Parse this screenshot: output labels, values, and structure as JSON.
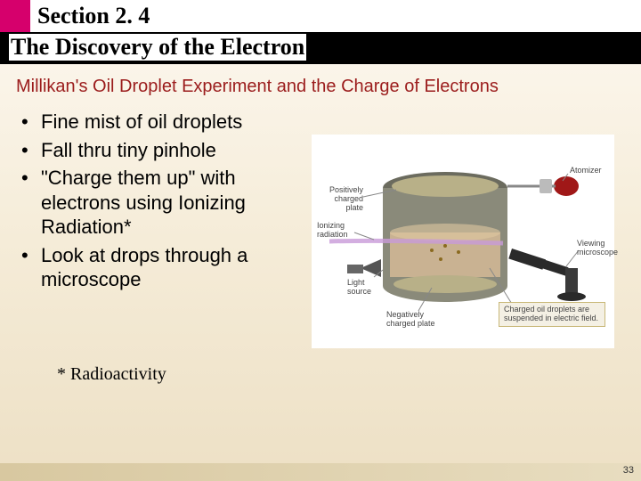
{
  "header": {
    "section_label": "Section 2. 4",
    "subtitle_bar": "The Discovery of the Electron"
  },
  "subtitle": "Millikan's Oil Droplet Experiment and the Charge of Electrons",
  "bullets": [
    "Fine mist of oil droplets",
    "Fall thru tiny pinhole",
    "\"Charge them up\" with electrons using Ionizing Radiation*",
    "Look at drops through a microscope"
  ],
  "footnote": "* Radioactivity",
  "page_number": "33",
  "diagram": {
    "labels": {
      "positively_charged_plate": "Positively\ncharged plate",
      "ionizing_radiation": "Ionizing\nradiation",
      "light_source": "Light\nsource",
      "negatively_charged_plate": "Negatively\ncharged plate",
      "atomizer": "Atomizer",
      "viewing_microscope": "Viewing\nmicroscope",
      "caption": "Charged oil droplets are\nsuspended in electric field."
    },
    "colors": {
      "chamber_body": "#8a8a7a",
      "chamber_rim": "#6b6b5e",
      "oil": "#d4b896",
      "ray": "#c89ad8",
      "atomizer_bulb": "#a01818",
      "microscope": "#2a2a2a",
      "plate": "#b8b088",
      "caption_bg": "#f4f0e4",
      "caption_border": "#c8b878"
    }
  }
}
